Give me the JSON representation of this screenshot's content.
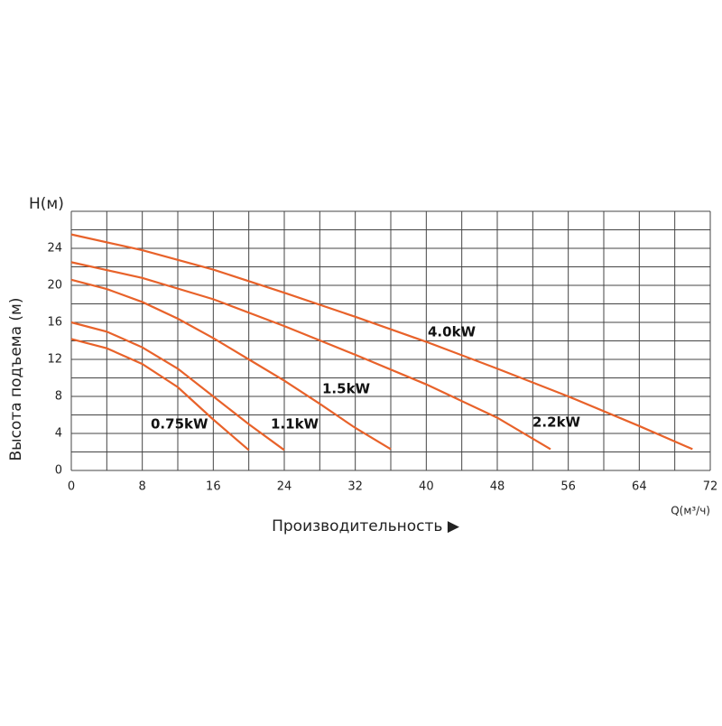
{
  "chart_data": {
    "type": "line",
    "y_unit_label": "H(м)",
    "ylabel": "Высота подъема (м)",
    "xlabel": "Производительность ▶",
    "x_unit_label": "Q(м³/ч)",
    "xlim": [
      0,
      72
    ],
    "xticks": [
      0,
      8,
      16,
      24,
      32,
      40,
      48,
      56,
      64,
      72
    ],
    "ylim": [
      0,
      28
    ],
    "yticks": [
      0,
      4,
      8,
      12,
      16,
      20,
      24
    ],
    "xgrid": [
      0,
      4,
      8,
      12,
      16,
      20,
      24,
      28,
      32,
      36,
      40,
      44,
      48,
      52,
      56,
      60,
      64,
      68,
      72
    ],
    "ygrid": [
      0,
      2,
      4,
      6,
      8,
      10,
      12,
      14,
      16,
      18,
      20,
      22,
      24,
      26,
      28
    ],
    "grid": true,
    "series": [
      {
        "name": "0.75kW",
        "color": "#e8622a",
        "x": [
          0,
          4,
          8,
          12,
          16,
          20
        ],
        "values": [
          14.2,
          13.2,
          11.5,
          9,
          5.5,
          2.2
        ]
      },
      {
        "name": "1.1kW",
        "color": "#e8622a",
        "x": [
          0,
          4,
          8,
          12,
          16,
          20,
          24
        ],
        "values": [
          16,
          15,
          13.3,
          11,
          8,
          5,
          2.2
        ]
      },
      {
        "name": "1.5kW",
        "color": "#e8622a",
        "x": [
          0,
          4,
          8,
          12,
          16,
          20,
          24,
          28,
          32,
          36
        ],
        "values": [
          20.6,
          19.6,
          18.2,
          16.4,
          14.3,
          12,
          9.7,
          7.2,
          4.6,
          2.3
        ]
      },
      {
        "name": "2.2kW",
        "color": "#e8622a",
        "x": [
          0,
          8,
          16,
          24,
          32,
          40,
          48,
          54
        ],
        "values": [
          22.5,
          20.8,
          18.5,
          15.6,
          12.5,
          9.3,
          5.7,
          2.3
        ]
      },
      {
        "name": "4.0kW",
        "color": "#e8622a",
        "x": [
          0,
          8,
          16,
          24,
          32,
          40,
          48,
          56,
          64,
          70
        ],
        "values": [
          25.5,
          23.8,
          21.7,
          19.2,
          16.6,
          13.9,
          11,
          8,
          4.8,
          2.3
        ]
      }
    ]
  }
}
